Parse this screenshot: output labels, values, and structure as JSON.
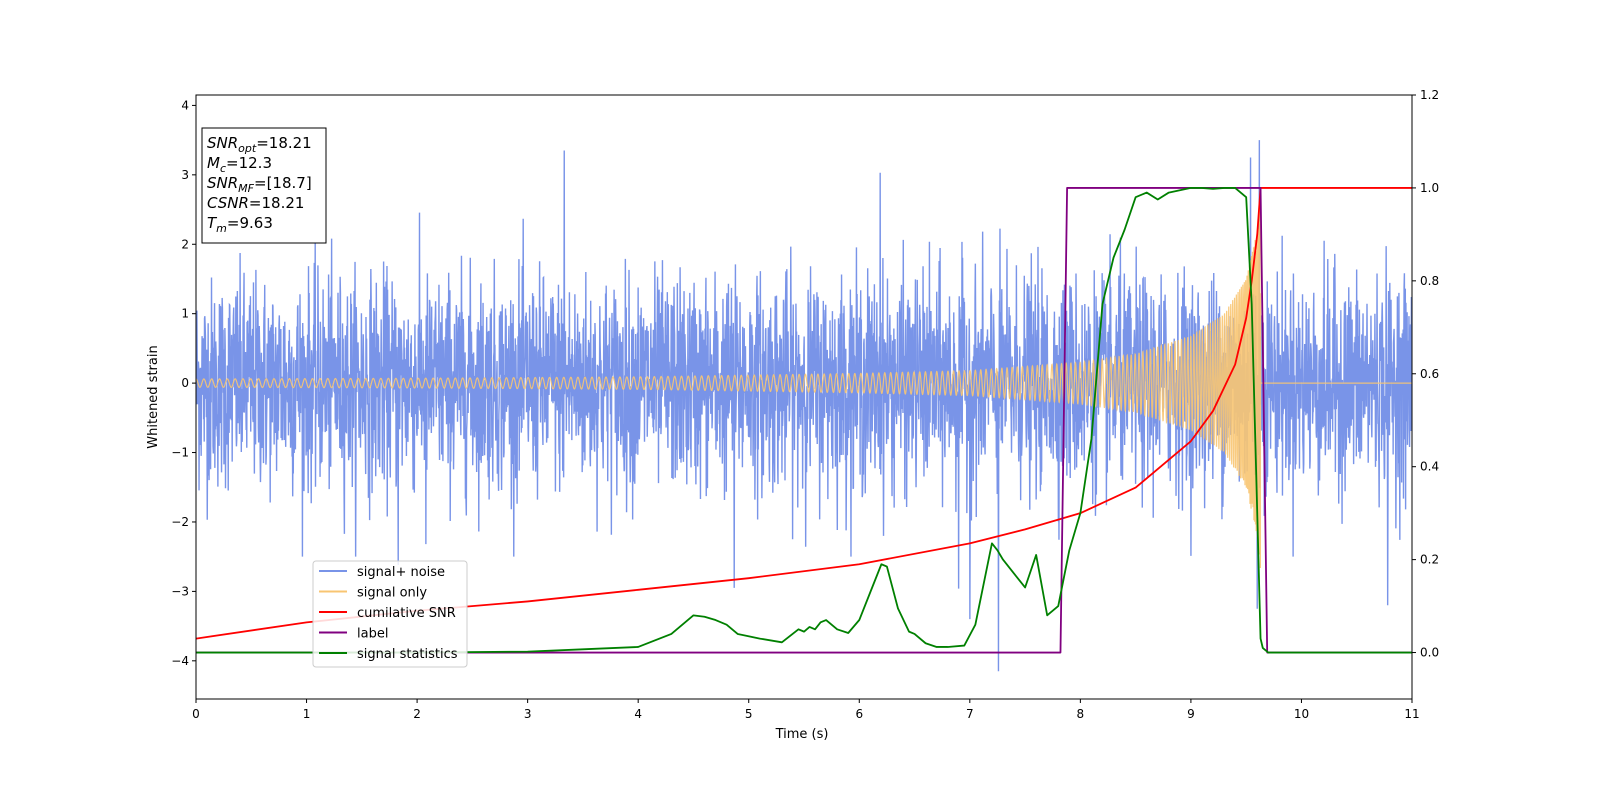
{
  "chart_data": {
    "type": "line",
    "xlabel": "Time (s)",
    "ylabel": "Whitened strain",
    "xlim": [
      0,
      11
    ],
    "ylim_left": [
      -4.55,
      4.15
    ],
    "ylim_right": [
      -0.1,
      1.2
    ],
    "x_ticks": [
      0,
      1,
      2,
      3,
      4,
      5,
      6,
      7,
      8,
      9,
      10,
      11
    ],
    "y_ticks_left": [
      -4,
      -3,
      -2,
      -1,
      0,
      1,
      2,
      3,
      4
    ],
    "y_ticks_right": [
      0.0,
      0.2,
      0.4,
      0.6,
      0.8,
      1.0,
      1.2
    ],
    "x_tick_labels": [
      "0",
      "1",
      "2",
      "3",
      "4",
      "5",
      "6",
      "7",
      "8",
      "9",
      "10",
      "11"
    ],
    "y_tick_labels_left": [
      "−4",
      "−3",
      "−2",
      "−1",
      "0",
      "1",
      "2",
      "3",
      "4"
    ],
    "y_tick_labels_right": [
      "0.0",
      "0.2",
      "0.4",
      "0.6",
      "0.8",
      "1.0",
      "1.2"
    ],
    "legend": {
      "placement": "lower-left",
      "entries": [
        "signal+ noise",
        "signal only",
        "cumilative SNR",
        "label",
        "signal statistics"
      ]
    },
    "annotation": {
      "lines": [
        {
          "base": "SNR",
          "sub": "opt",
          "value": "=18.21"
        },
        {
          "base": "M",
          "sub": "c",
          "value": "=12.3"
        },
        {
          "base": "SNR",
          "sub": "MF",
          "value": "=[18.7]"
        },
        {
          "base": "CSNR",
          "sub": "",
          "value": "=18.21"
        },
        {
          "base": "T",
          "sub": "m",
          "value": "=9.63"
        }
      ]
    },
    "series": [
      {
        "name": "signal+ noise",
        "axis": "left",
        "color": "#7994e8",
        "kind": "noise",
        "noise_sigma": 0.75,
        "extremes": [
          [
            3.33,
            3.35
          ],
          [
            6.19,
            3.03
          ],
          [
            7.26,
            -4.15
          ],
          [
            7.0,
            -3.4
          ],
          [
            9.54,
            3.25
          ],
          [
            9.62,
            3.5
          ],
          [
            9.6,
            -3.25
          ],
          [
            10.78,
            -3.2
          ],
          [
            4.87,
            -2.95
          ],
          [
            1.83,
            -2.62
          ],
          [
            2.08,
            -2.32
          ],
          [
            6.9,
            -2.96
          ]
        ]
      },
      {
        "name": "signal only",
        "axis": "left",
        "color": "#f8c572",
        "kind": "chirp",
        "t_merge": 9.63,
        "envelope": [
          [
            0,
            0.06
          ],
          [
            2,
            0.07
          ],
          [
            4,
            0.09
          ],
          [
            6,
            0.14
          ],
          [
            7,
            0.18
          ],
          [
            8,
            0.3
          ],
          [
            8.5,
            0.42
          ],
          [
            9,
            0.68
          ],
          [
            9.3,
            1.0
          ],
          [
            9.5,
            1.5
          ],
          [
            9.6,
            2.2
          ],
          [
            9.63,
            2.7
          ]
        ]
      },
      {
        "name": "cumilative SNR",
        "axis": "right",
        "color": "#ff0000",
        "x": [
          0,
          1,
          2,
          3,
          4,
          5,
          6,
          7,
          7.5,
          8,
          8.5,
          9,
          9.2,
          9.4,
          9.5,
          9.55,
          9.6,
          9.63,
          10,
          11
        ],
        "y": [
          0.03,
          0.065,
          0.09,
          0.11,
          0.135,
          0.16,
          0.19,
          0.235,
          0.265,
          0.3,
          0.355,
          0.455,
          0.52,
          0.62,
          0.72,
          0.8,
          0.9,
          1.0,
          1.0,
          1.0
        ]
      },
      {
        "name": "label",
        "axis": "right",
        "color": "#800080",
        "x": [
          0,
          7.82,
          7.88,
          9.63,
          9.69,
          11
        ],
        "y": [
          0,
          0,
          1,
          1,
          0,
          0
        ]
      },
      {
        "name": "signal statistics",
        "axis": "right",
        "color": "#008000",
        "x": [
          0,
          2,
          3,
          3.5,
          4,
          4.3,
          4.5,
          4.6,
          4.7,
          4.8,
          4.9,
          5.1,
          5.3,
          5.45,
          5.5,
          5.55,
          5.6,
          5.65,
          5.7,
          5.8,
          5.9,
          6.0,
          6.1,
          6.2,
          6.25,
          6.35,
          6.45,
          6.5,
          6.6,
          6.7,
          6.8,
          6.95,
          7.05,
          7.2,
          7.25,
          7.3,
          7.4,
          7.5,
          7.6,
          7.7,
          7.8,
          7.9,
          8.0,
          8.1,
          8.2,
          8.3,
          8.4,
          8.5,
          8.6,
          8.7,
          8.8,
          8.9,
          9.0,
          9.1,
          9.2,
          9.3,
          9.4,
          9.5,
          9.55,
          9.6,
          9.63,
          9.65,
          9.7,
          9.8,
          11
        ],
        "y": [
          0.0,
          0.0,
          0.002,
          0.007,
          0.012,
          0.04,
          0.08,
          0.077,
          0.07,
          0.06,
          0.04,
          0.03,
          0.022,
          0.05,
          0.045,
          0.055,
          0.05,
          0.065,
          0.07,
          0.05,
          0.042,
          0.07,
          0.13,
          0.19,
          0.185,
          0.095,
          0.045,
          0.04,
          0.02,
          0.012,
          0.012,
          0.015,
          0.06,
          0.235,
          0.22,
          0.2,
          0.17,
          0.14,
          0.21,
          0.08,
          0.1,
          0.22,
          0.3,
          0.46,
          0.75,
          0.85,
          0.91,
          0.98,
          0.99,
          0.975,
          0.99,
          0.995,
          1.0,
          1.0,
          0.998,
          1.0,
          1.0,
          0.98,
          0.75,
          0.3,
          0.03,
          0.01,
          0.0,
          0.0,
          0.0
        ]
      }
    ]
  }
}
